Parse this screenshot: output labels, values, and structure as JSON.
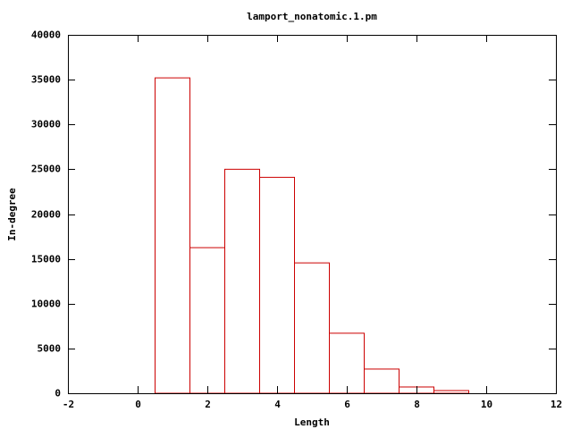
{
  "chart_data": {
    "type": "histogram",
    "title": "lamport_nonatomic.1.pm",
    "x_label": "Length",
    "y_label": "In-degree",
    "bins": [
      0.5,
      1.5,
      2.5,
      3.5,
      4.5,
      5.5,
      6.5,
      7.5,
      8.5,
      9.5
    ],
    "values": [
      35200,
      16250,
      25000,
      24100,
      14550,
      6700,
      2700,
      700,
      300
    ],
    "color": "#cc0000",
    "xlim": [
      -2,
      12
    ],
    "xticks": [
      -2,
      0,
      2,
      4,
      6,
      8,
      10,
      12
    ],
    "ylim": [
      0,
      40000
    ],
    "yticks": [
      0,
      5000,
      10000,
      15000,
      20000,
      25000,
      30000,
      35000,
      40000
    ],
    "grid": false
  }
}
